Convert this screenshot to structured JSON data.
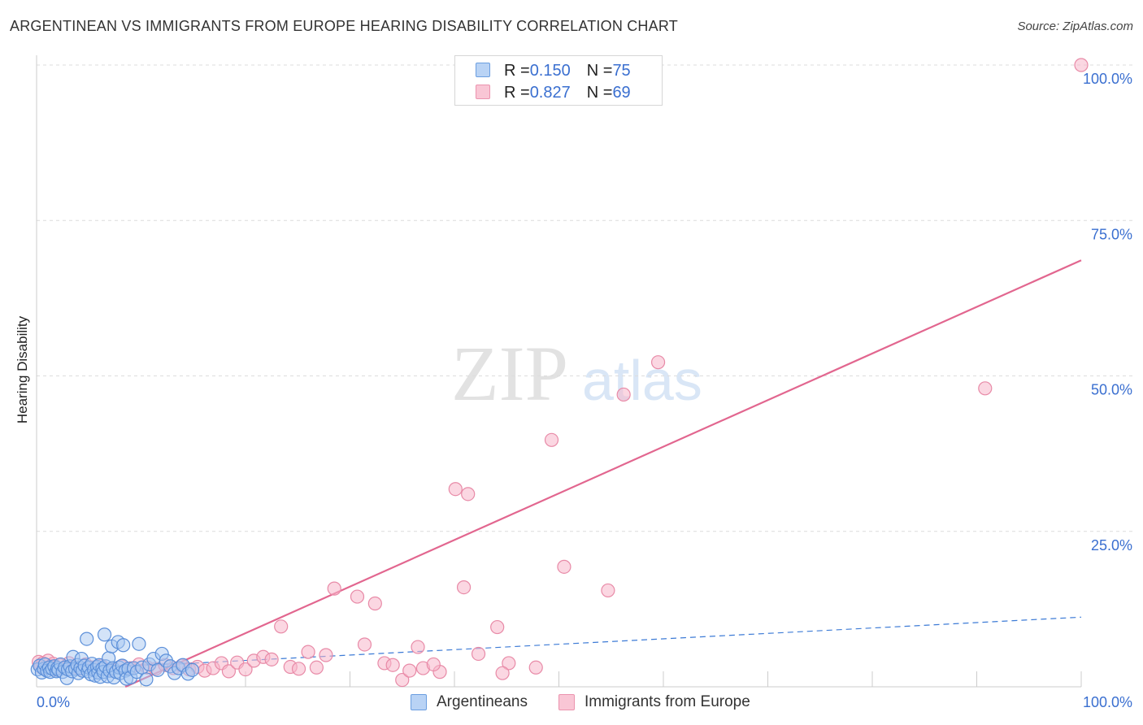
{
  "title": "ARGENTINEAN VS IMMIGRANTS FROM EUROPE HEARING DISABILITY CORRELATION CHART",
  "source": "Source: ZipAtlas.com",
  "watermark": {
    "zip": "ZIP",
    "atlas": "atlas"
  },
  "legend": {
    "r_label": "R = ",
    "n_label": "N = ",
    "rows": [
      {
        "r": "0.150",
        "n": "75"
      },
      {
        "r": "0.827",
        "n": "69"
      }
    ]
  },
  "bottom_legend": {
    "series1": "Argentineans",
    "series2": "Immigrants from Europe"
  },
  "chart_data": {
    "type": "scatter",
    "title": "ARGENTINEAN VS IMMIGRANTS FROM EUROPE HEARING DISABILITY CORRELATION CHART",
    "xlabel": "",
    "ylabel": "Hearing Disability",
    "xlim": [
      0,
      100
    ],
    "ylim": [
      0,
      100
    ],
    "x_tick_labels": [
      "0.0%",
      "100.0%"
    ],
    "y_ticks": [
      25,
      50,
      75,
      100
    ],
    "y_tick_labels": [
      "25.0%",
      "50.0%",
      "75.0%",
      "100.0%"
    ],
    "grid": true,
    "colors": {
      "series1_fill": "#a7c7f2",
      "series1_stroke": "#5b8fd9",
      "series1_line": "#3d7bd6",
      "series2_fill": "#f7b7ca",
      "series2_stroke": "#e88aa7",
      "series2_line": "#e2668f",
      "axis_text": "#3a6fd0",
      "grid": "#dcdcdc"
    },
    "series": [
      {
        "name": "Argentineans",
        "R": 0.15,
        "N": 75,
        "trendline": {
          "x": [
            0,
            15,
            100
          ],
          "y": [
            2.9,
            3.8,
            11.2
          ],
          "solid_until": 15
        },
        "points": [
          [
            0.1,
            2.8
          ],
          [
            0.3,
            3.4
          ],
          [
            0.5,
            2.3
          ],
          [
            0.7,
            2.9
          ],
          [
            0.8,
            3.6
          ],
          [
            1.0,
            2.6
          ],
          [
            1.2,
            3.1
          ],
          [
            1.3,
            2.4
          ],
          [
            1.5,
            2.9
          ],
          [
            1.7,
            3.3
          ],
          [
            1.9,
            2.5
          ],
          [
            2.0,
            3.0
          ],
          [
            2.1,
            2.7
          ],
          [
            2.3,
            3.6
          ],
          [
            2.5,
            2.4
          ],
          [
            2.7,
            3.1
          ],
          [
            2.9,
            1.4
          ],
          [
            3.0,
            2.8
          ],
          [
            3.2,
            3.3
          ],
          [
            3.4,
            2.5
          ],
          [
            3.5,
            4.8
          ],
          [
            3.7,
            2.9
          ],
          [
            3.9,
            3.5
          ],
          [
            4.0,
            2.2
          ],
          [
            4.2,
            3.0
          ],
          [
            4.3,
            4.5
          ],
          [
            4.4,
            2.6
          ],
          [
            4.6,
            3.4
          ],
          [
            4.8,
            7.7
          ],
          [
            4.9,
            2.5
          ],
          [
            5.0,
            3.1
          ],
          [
            5.2,
            2.0
          ],
          [
            5.3,
            3.7
          ],
          [
            5.5,
            2.7
          ],
          [
            5.6,
            1.8
          ],
          [
            5.8,
            3.2
          ],
          [
            5.9,
            2.3
          ],
          [
            6.0,
            3.5
          ],
          [
            6.1,
            1.6
          ],
          [
            6.3,
            2.9
          ],
          [
            6.4,
            2.4
          ],
          [
            6.5,
            8.4
          ],
          [
            6.6,
            3.3
          ],
          [
            6.8,
            1.7
          ],
          [
            6.9,
            4.6
          ],
          [
            7.0,
            2.6
          ],
          [
            7.2,
            6.5
          ],
          [
            7.3,
            3.0
          ],
          [
            7.4,
            1.5
          ],
          [
            7.6,
            2.4
          ],
          [
            7.8,
            7.2
          ],
          [
            7.9,
            3.1
          ],
          [
            8.0,
            2.2
          ],
          [
            8.2,
            3.4
          ],
          [
            8.3,
            6.7
          ],
          [
            8.5,
            2.6
          ],
          [
            8.6,
            1.3
          ],
          [
            8.8,
            2.9
          ],
          [
            9.0,
            1.5
          ],
          [
            9.3,
            3.0
          ],
          [
            9.6,
            2.4
          ],
          [
            9.8,
            6.9
          ],
          [
            10.1,
            3.1
          ],
          [
            10.5,
            1.2
          ],
          [
            10.8,
            3.6
          ],
          [
            11.2,
            4.5
          ],
          [
            11.6,
            2.7
          ],
          [
            12.0,
            5.3
          ],
          [
            12.4,
            4.2
          ],
          [
            12.8,
            3.3
          ],
          [
            13.2,
            2.2
          ],
          [
            13.6,
            3.0
          ],
          [
            14.0,
            3.5
          ],
          [
            14.5,
            2.1
          ],
          [
            14.9,
            2.7
          ]
        ]
      },
      {
        "name": "Immigrants from Europe",
        "R": 0.827,
        "N": 69,
        "trendline": {
          "x": [
            8.5,
            100
          ],
          "y": [
            0,
            68.6
          ]
        },
        "points": [
          [
            0.2,
            4.0
          ],
          [
            0.4,
            3.2
          ],
          [
            0.6,
            3.8
          ],
          [
            0.9,
            2.9
          ],
          [
            1.1,
            4.2
          ],
          [
            1.4,
            3.3
          ],
          [
            1.6,
            3.7
          ],
          [
            1.8,
            2.8
          ],
          [
            2.2,
            3.5
          ],
          [
            2.6,
            3.0
          ],
          [
            3.1,
            3.8
          ],
          [
            3.6,
            3.2
          ],
          [
            4.1,
            2.9
          ],
          [
            4.7,
            3.6
          ],
          [
            5.4,
            3.1
          ],
          [
            6.2,
            3.4
          ],
          [
            7.1,
            2.8
          ],
          [
            8.1,
            3.3
          ],
          [
            9.0,
            3.0
          ],
          [
            9.8,
            3.6
          ],
          [
            10.6,
            3.1
          ],
          [
            11.4,
            2.9
          ],
          [
            12.3,
            3.5
          ],
          [
            13.1,
            3.0
          ],
          [
            13.9,
            3.4
          ],
          [
            14.6,
            2.8
          ],
          [
            15.4,
            3.2
          ],
          [
            16.1,
            2.6
          ],
          [
            16.9,
            3.0
          ],
          [
            17.7,
            3.8
          ],
          [
            18.4,
            2.5
          ],
          [
            19.2,
            3.9
          ],
          [
            20.0,
            2.8
          ],
          [
            20.8,
            4.2
          ],
          [
            21.7,
            4.8
          ],
          [
            22.5,
            4.4
          ],
          [
            23.4,
            9.7
          ],
          [
            24.3,
            3.2
          ],
          [
            25.1,
            2.9
          ],
          [
            26.0,
            5.6
          ],
          [
            26.8,
            3.1
          ],
          [
            27.7,
            5.1
          ],
          [
            28.5,
            15.8
          ],
          [
            30.7,
            14.5
          ],
          [
            31.4,
            6.8
          ],
          [
            32.4,
            13.4
          ],
          [
            33.3,
            3.8
          ],
          [
            34.1,
            3.5
          ],
          [
            35.0,
            1.1
          ],
          [
            35.7,
            2.6
          ],
          [
            36.5,
            6.4
          ],
          [
            37.0,
            3.0
          ],
          [
            38.6,
            2.4
          ],
          [
            40.1,
            31.8
          ],
          [
            40.9,
            16.0
          ],
          [
            41.3,
            31.0
          ],
          [
            42.3,
            5.3
          ],
          [
            44.1,
            9.6
          ],
          [
            45.2,
            3.8
          ],
          [
            49.3,
            39.7
          ],
          [
            50.5,
            19.3
          ],
          [
            54.7,
            15.5
          ],
          [
            56.2,
            47.0
          ],
          [
            59.5,
            52.2
          ],
          [
            90.8,
            48.0
          ],
          [
            100.0,
            100.0
          ],
          [
            38.0,
            3.6
          ],
          [
            44.6,
            2.2
          ],
          [
            47.8,
            3.1
          ]
        ]
      }
    ]
  }
}
